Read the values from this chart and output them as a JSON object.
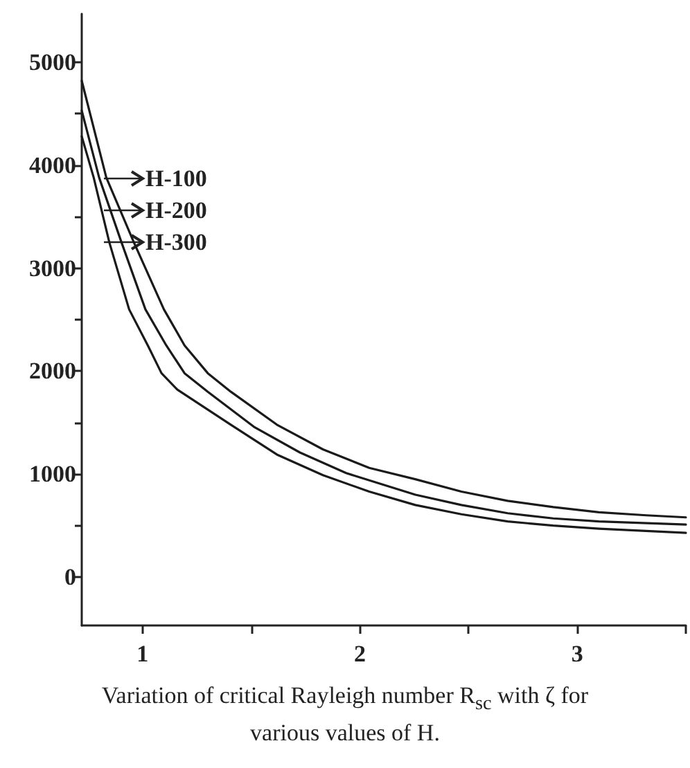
{
  "chart_data": {
    "type": "line",
    "xlabel": "Variation of critical Rayleigh number R$_{sc}$ with ζ for various values of H.",
    "xlim": [
      0.72,
      3.5
    ],
    "xticks": [
      1,
      {
        "value": 1.5,
        "label": null
      },
      2,
      {
        "value": 2.5,
        "label": null
      },
      3,
      {
        "value": 3.5,
        "label": null
      }
    ],
    "ylim": [
      -470,
      5470
    ],
    "yticks": [
      0,
      {
        "value": 500,
        "label": null
      },
      1000,
      {
        "value": 1500,
        "label": null
      },
      2000,
      {
        "value": 2500,
        "label": null
      },
      3000,
      {
        "value": 3500,
        "label": null
      },
      4000,
      {
        "value": 4500,
        "label": null
      },
      5000
    ],
    "grid": false,
    "marker": "none",
    "line_style": "solid",
    "annotations": [
      "H-100",
      "H-200",
      "H-300"
    ],
    "series": [
      {
        "color": "#1a1a1a",
        "x": [
          0.72,
          0.833,
          0.96,
          1.098,
          1.193,
          1.3,
          1.406,
          1.618,
          1.83,
          2.043,
          2.255,
          2.467,
          2.68,
          2.89,
          3.1,
          3.317,
          3.5
        ],
        "values": [
          4820,
          3880,
          3250,
          2600,
          2250,
          1980,
          1800,
          1480,
          1240,
          1060,
          950,
          830,
          740,
          680,
          630,
          600,
          580
        ]
      },
      {
        "color": "#1a1a1a",
        "x": [
          0.72,
          0.8,
          0.903,
          1.013,
          1.109,
          1.193,
          1.3,
          1.512,
          1.724,
          1.937,
          2.255,
          2.467,
          2.68,
          2.89,
          3.1,
          3.5
        ],
        "values": [
          4530,
          3880,
          3250,
          2600,
          2250,
          1980,
          1800,
          1460,
          1210,
          1010,
          800,
          700,
          620,
          570,
          540,
          510
        ]
      },
      {
        "color": "#1a1a1a",
        "x": [
          0.72,
          0.775,
          0.847,
          0.938,
          1.024,
          1.087,
          1.16,
          1.406,
          1.618,
          1.83,
          2.043,
          2.255,
          2.467,
          2.68,
          2.89,
          3.1,
          3.5
        ],
        "values": [
          4280,
          3880,
          3250,
          2600,
          2250,
          1980,
          1820,
          1480,
          1190,
          990,
          830,
          700,
          610,
          540,
          500,
          470,
          430
        ]
      }
    ]
  }
}
